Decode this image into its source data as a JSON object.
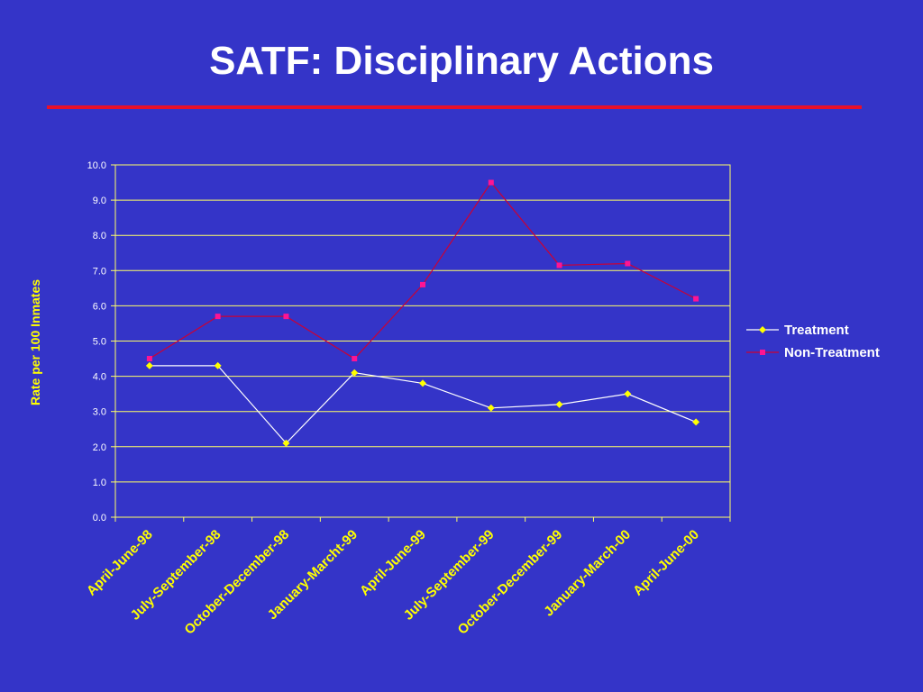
{
  "slide": {
    "title": "SATF: Disciplinary Actions"
  },
  "colors": {
    "background": "#3434c8",
    "title_rule": "#e8102a",
    "grid": "#ffff66",
    "treatment_line": "#ffffff",
    "treatment_marker": "#ffff00",
    "non_treatment_line": "#cc0033",
    "non_treatment_marker": "#ff1493"
  },
  "chart_data": {
    "type": "line",
    "title": "SATF: Disciplinary Actions",
    "xlabel": "",
    "ylabel": "Rate per 100 Inmates",
    "ylim": [
      0,
      10
    ],
    "yticks": [
      "0.0",
      "1.0",
      "2.0",
      "3.0",
      "4.0",
      "5.0",
      "6.0",
      "7.0",
      "8.0",
      "9.0",
      "10.0"
    ],
    "categories": [
      "April-June-98",
      "July-September-98",
      "October-December-98",
      "January-Marcht-99",
      "April-June-99",
      "July-September-99",
      "October-December-99",
      "January-March-00",
      "April-June-00"
    ],
    "series": [
      {
        "name": "Treatment",
        "marker": "diamond",
        "values": [
          4.3,
          4.3,
          2.1,
          4.1,
          3.8,
          3.1,
          3.2,
          3.5,
          2.7
        ]
      },
      {
        "name": "Non-Treatment",
        "marker": "square",
        "values": [
          4.5,
          5.7,
          5.7,
          4.5,
          6.6,
          9.5,
          7.15,
          7.2,
          6.2
        ]
      }
    ],
    "grid": true,
    "legend": "right"
  }
}
